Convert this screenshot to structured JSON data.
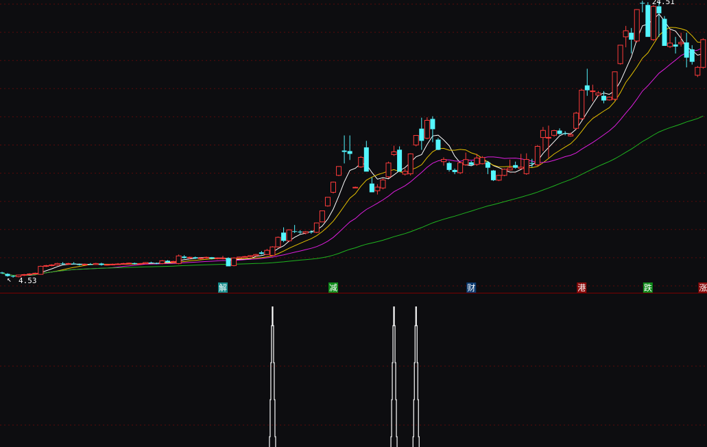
{
  "chart_data": {
    "type": "candlestick",
    "ylim": [
      4.53,
      24.51
    ],
    "y_scale": "linear",
    "grid": true,
    "annotations": {
      "high_label": "24.51",
      "low_label": "4.53",
      "high_index": 116,
      "low_index": 2
    },
    "colors": {
      "up": "#ff3b3b",
      "down": "#54f6ff",
      "ma5": "#ffffff",
      "ma10": "#e6c200",
      "ma20": "#e01ee0",
      "ma60": "#1fb51f",
      "grid": "#5a0a0a",
      "background": "#0d0d10"
    },
    "moving_averages": [
      5,
      10,
      20,
      60
    ],
    "ohlc": [
      [
        4.9,
        4.95,
        4.8,
        4.85
      ],
      [
        4.8,
        4.85,
        4.6,
        4.65
      ],
      [
        4.65,
        4.7,
        4.53,
        4.6
      ],
      [
        4.6,
        4.75,
        4.55,
        4.72
      ],
      [
        4.72,
        4.8,
        4.65,
        4.75
      ],
      [
        4.75,
        4.85,
        4.7,
        4.8
      ],
      [
        4.8,
        4.9,
        4.75,
        4.85
      ],
      [
        4.77,
        5.4,
        4.75,
        5.35
      ],
      [
        5.35,
        5.45,
        5.3,
        5.4
      ],
      [
        5.4,
        5.5,
        5.35,
        5.45
      ],
      [
        5.45,
        5.6,
        5.4,
        5.55
      ],
      [
        5.55,
        5.65,
        5.45,
        5.5
      ],
      [
        5.5,
        5.6,
        5.45,
        5.55
      ],
      [
        5.55,
        5.65,
        5.5,
        5.5
      ],
      [
        5.5,
        5.55,
        5.4,
        5.45
      ],
      [
        5.45,
        5.55,
        5.42,
        5.5
      ],
      [
        5.5,
        5.58,
        5.45,
        5.48
      ],
      [
        5.48,
        5.6,
        5.45,
        5.55
      ],
      [
        5.55,
        5.6,
        5.4,
        5.45
      ],
      [
        5.45,
        5.5,
        5.4,
        5.48
      ],
      [
        5.48,
        5.55,
        5.42,
        5.5
      ],
      [
        5.5,
        5.58,
        5.45,
        5.52
      ],
      [
        5.52,
        5.6,
        5.48,
        5.55
      ],
      [
        5.55,
        5.62,
        5.5,
        5.58
      ],
      [
        5.58,
        5.62,
        5.48,
        5.52
      ],
      [
        5.52,
        5.58,
        5.45,
        5.55
      ],
      [
        5.55,
        5.65,
        5.5,
        5.62
      ],
      [
        5.62,
        5.68,
        5.55,
        5.58
      ],
      [
        5.58,
        5.62,
        5.5,
        5.55
      ],
      [
        5.55,
        5.8,
        5.5,
        5.75
      ],
      [
        5.75,
        5.8,
        5.6,
        5.65
      ],
      [
        5.65,
        5.75,
        5.58,
        5.7
      ],
      [
        5.55,
        6.2,
        5.5,
        6.1
      ],
      [
        6.05,
        6.15,
        5.9,
        5.95
      ],
      [
        5.95,
        6.05,
        5.85,
        6.0
      ],
      [
        6.0,
        6.05,
        5.88,
        5.92
      ],
      [
        5.92,
        6.0,
        5.85,
        5.95
      ],
      [
        5.95,
        6.05,
        5.9,
        6.0
      ],
      [
        6.0,
        6.02,
        5.85,
        5.9
      ],
      [
        5.9,
        6.0,
        5.85,
        5.95
      ],
      [
        5.95,
        6.1,
        5.85,
        5.95
      ],
      [
        5.95,
        6.0,
        5.35,
        5.35
      ],
      [
        5.4,
        6.0,
        5.35,
        5.95
      ],
      [
        5.95,
        6.05,
        5.9,
        6.02
      ],
      [
        6.02,
        6.1,
        5.98,
        6.05
      ],
      [
        6.05,
        6.15,
        6.0,
        6.12
      ],
      [
        6.12,
        6.25,
        6.05,
        6.2
      ],
      [
        6.35,
        6.45,
        6.2,
        6.25
      ],
      [
        6.2,
        6.6,
        6.15,
        6.5
      ],
      [
        6.14,
        6.8,
        6.1,
        6.75
      ],
      [
        6.75,
        7.5,
        6.7,
        7.44
      ],
      [
        7.78,
        8.16,
        7.09,
        7.19
      ],
      [
        7.19,
        8.0,
        7.1,
        7.98
      ],
      [
        7.88,
        8.33,
        7.75,
        7.85
      ],
      [
        7.85,
        7.95,
        7.7,
        7.8
      ],
      [
        7.75,
        7.9,
        7.65,
        7.85
      ],
      [
        7.85,
        7.95,
        7.7,
        7.8
      ],
      [
        7.8,
        8.5,
        7.75,
        8.48
      ],
      [
        8.55,
        9.37,
        8.55,
        9.35
      ],
      [
        9.71,
        10.35,
        9.65,
        10.33
      ],
      [
        10.69,
        11.46,
        10.6,
        11.42
      ],
      [
        11.91,
        12.57,
        11.85,
        12.55
      ],
      [
        13.7,
        14.79,
        12.77,
        13.6
      ],
      [
        13.66,
        14.79,
        13.02,
        13.46
      ],
      [
        11.03,
        11.1,
        11.0,
        11.05
      ],
      [
        12.52,
        13.3,
        12.45,
        13.21
      ],
      [
        13.93,
        14.4,
        12.18,
        12.18
      ],
      [
        11.32,
        11.76,
        10.69,
        10.69
      ],
      [
        10.8,
        11.27,
        10.53,
        11.06
      ],
      [
        11.0,
        11.7,
        10.9,
        11.58
      ],
      [
        11.81,
        12.9,
        11.7,
        12.8
      ],
      [
        13.41,
        14.05,
        13.31,
        13.61
      ],
      [
        13.76,
        14.0,
        12.18,
        12.18
      ],
      [
        12.0,
        12.4,
        11.9,
        12.2
      ],
      [
        12.03,
        13.5,
        11.9,
        13.46
      ],
      [
        14.1,
        14.8,
        14.0,
        14.79
      ],
      [
        15.28,
        16.07,
        13.75,
        14.4
      ],
      [
        14.59,
        16.1,
        14.5,
        15.88
      ],
      [
        15.98,
        16.17,
        14.3,
        15.24
      ],
      [
        14.49,
        14.6,
        13.73,
        13.75
      ],
      [
        12.9,
        13.21,
        12.61,
        13.06
      ],
      [
        12.8,
        12.9,
        12.18,
        12.3
      ],
      [
        12.3,
        12.4,
        12.0,
        12.15
      ],
      [
        12.1,
        12.9,
        12.0,
        12.82
      ],
      [
        12.67,
        13.55,
        12.6,
        13.05
      ],
      [
        12.85,
        12.95,
        12.6,
        12.67
      ],
      [
        12.7,
        13.46,
        12.6,
        13.16
      ],
      [
        12.75,
        13.3,
        12.7,
        13.2
      ],
      [
        12.85,
        12.95,
        12.0,
        12.46
      ],
      [
        12.26,
        12.3,
        11.5,
        11.56
      ],
      [
        11.56,
        11.95,
        11.5,
        11.91
      ],
      [
        11.91,
        12.4,
        11.85,
        12.35
      ],
      [
        12.3,
        13.05,
        12.25,
        12.45
      ],
      [
        12.65,
        12.9,
        12.4,
        12.46
      ],
      [
        12.4,
        13.46,
        12.35,
        12.5
      ],
      [
        12.03,
        13.5,
        11.95,
        13.06
      ],
      [
        12.8,
        13.1,
        12.5,
        12.75
      ],
      [
        12.67,
        14.1,
        12.6,
        14.0
      ],
      [
        14.64,
        15.4,
        13.66,
        15.15
      ],
      [
        14.6,
        15.5,
        13.16,
        14.65
      ],
      [
        14.8,
        15.2,
        14.7,
        15.14
      ],
      [
        15.14,
        15.3,
        14.85,
        14.9
      ],
      [
        14.95,
        15.1,
        14.8,
        14.93
      ],
      [
        14.75,
        15.0,
        14.7,
        14.85
      ],
      [
        15.3,
        16.5,
        15.2,
        16.4
      ],
      [
        16.0,
        18.15,
        15.9,
        18.05
      ],
      [
        18.4,
        19.6,
        17.65,
        18.05
      ],
      [
        17.95,
        18.45,
        17.25,
        18.0
      ],
      [
        17.7,
        18.0,
        17.6,
        17.85
      ],
      [
        17.65,
        17.99,
        17.11,
        17.31
      ],
      [
        17.35,
        17.6,
        17.3,
        17.55
      ],
      [
        17.4,
        19.4,
        17.3,
        19.38
      ],
      [
        19.97,
        21.3,
        19.9,
        21.3
      ],
      [
        21.9,
        22.69,
        21.15,
        22.34
      ],
      [
        22.2,
        22.54,
        20.71,
        21.7
      ],
      [
        21.6,
        23.9,
        21.5,
        23.87
      ],
      [
        24.35,
        24.51,
        23.67,
        24.3
      ],
      [
        24.2,
        24.4,
        21.9,
        21.9
      ],
      [
        21.7,
        24.2,
        21.6,
        24.1
      ],
      [
        24.1,
        24.45,
        21.9,
        23.6
      ],
      [
        23.2,
        23.4,
        21.25,
        21.25
      ],
      [
        21.2,
        22.44,
        21.1,
        21.45
      ],
      [
        21.35,
        21.9,
        20.7,
        21.2
      ],
      [
        21.4,
        22.2,
        21.2,
        21.5
      ],
      [
        21.5,
        22.2,
        19.7,
        20.4
      ],
      [
        21.0,
        21.3,
        19.9,
        20.1
      ],
      [
        19.13,
        19.8,
        19.0,
        19.7
      ],
      [
        19.7,
        21.8,
        19.6,
        21.7
      ]
    ],
    "event_markers": [
      {
        "index": 40,
        "text": "解",
        "color": "#138a8a"
      },
      {
        "index": 60,
        "text": "减",
        "color": "#0f8a1a"
      },
      {
        "index": 85,
        "text": "财",
        "color": "#0b3a6e"
      },
      {
        "index": 105,
        "text": "港",
        "color": "#8a0a0a"
      },
      {
        "index": 117,
        "text": "跌",
        "color": "#0f8a1a"
      },
      {
        "index": 127,
        "text": "涨",
        "color": "#8a0a0a"
      }
    ],
    "lower_panel": {
      "signal_indices": [
        49,
        71,
        75
      ],
      "color": "#ffffff"
    }
  }
}
